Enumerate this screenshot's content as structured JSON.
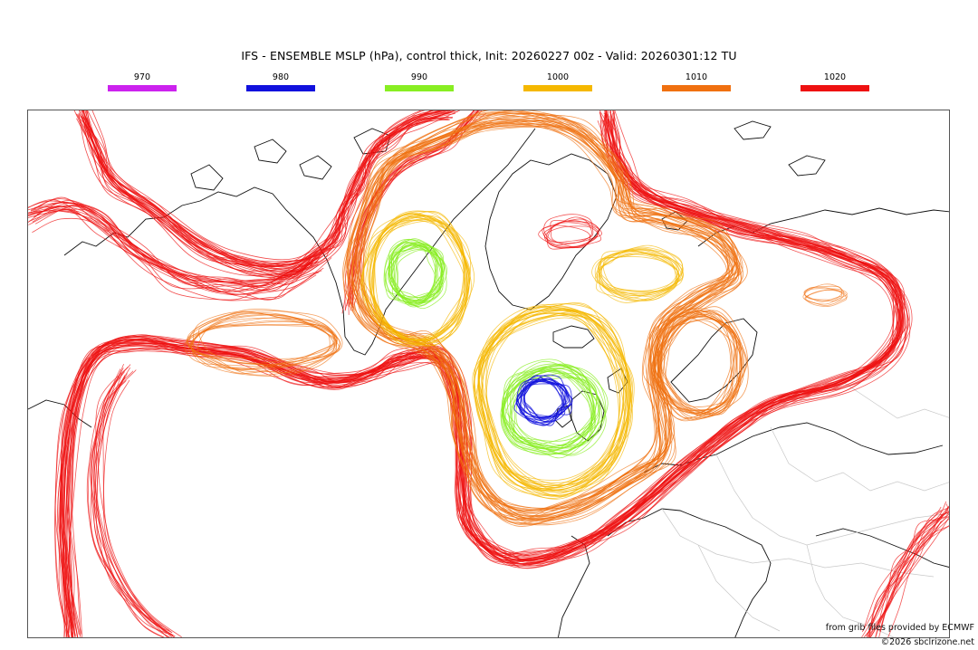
{
  "title": "IFS - ENSEMBLE MSLP (hPa), control thick, Init: 20260227 00z - Valid: 20260301:12 TU",
  "legend": [
    {
      "label": "970",
      "color": "#cc22ee"
    },
    {
      "label": "980",
      "color": "#1111dd"
    },
    {
      "label": "990",
      "color": "#88ee22"
    },
    {
      "label": "1000",
      "color": "#f5b800"
    },
    {
      "label": "1010",
      "color": "#f07010"
    },
    {
      "label": "1020",
      "color": "#ee1111"
    }
  ],
  "credits": {
    "source": "from grib files provided by ECMWF",
    "copyright": "©2026 sbclrizone.net"
  }
}
